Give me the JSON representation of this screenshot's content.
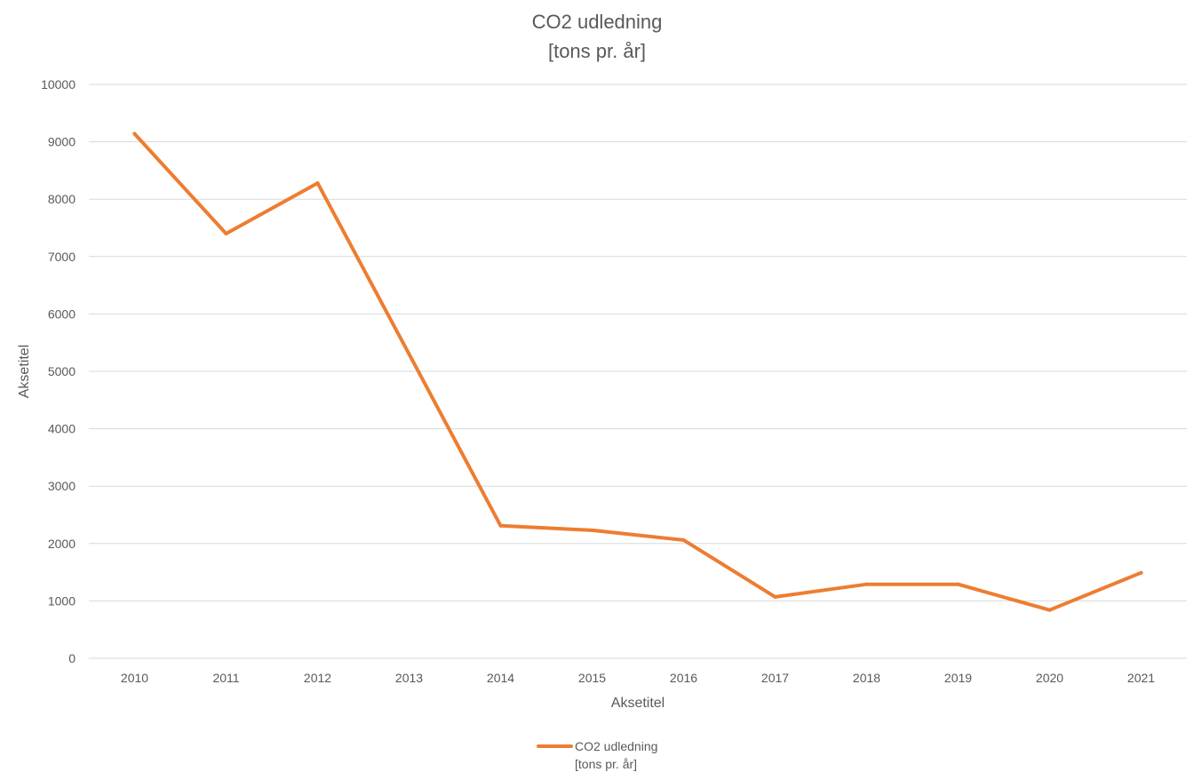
{
  "chart_data": {
    "type": "line",
    "title_lines": [
      "CO2 udledning",
      "[tons pr. år]"
    ],
    "xlabel": "Aksetitel",
    "ylabel": "Aksetitel",
    "categories": [
      "2010",
      "2011",
      "2012",
      "2013",
      "2014",
      "2015",
      "2016",
      "2017",
      "2018",
      "2019",
      "2020",
      "2021"
    ],
    "series": [
      {
        "name_lines": [
          "CO2 udledning",
          "[tons pr. år]"
        ],
        "color": "#ED7D31",
        "values": [
          9140,
          7400,
          8280,
          5300,
          2310,
          2230,
          2060,
          1070,
          1290,
          1290,
          840,
          1490
        ]
      }
    ],
    "ylim": [
      0,
      10000
    ],
    "yticks": [
      "0",
      "1000",
      "2000",
      "3000",
      "4000",
      "5000",
      "6000",
      "7000",
      "8000",
      "9000",
      "10000"
    ],
    "grid": "horizontal",
    "legend_position": "bottom",
    "colors": {
      "gridline": "#D9D9D9",
      "text": "#595959"
    }
  }
}
